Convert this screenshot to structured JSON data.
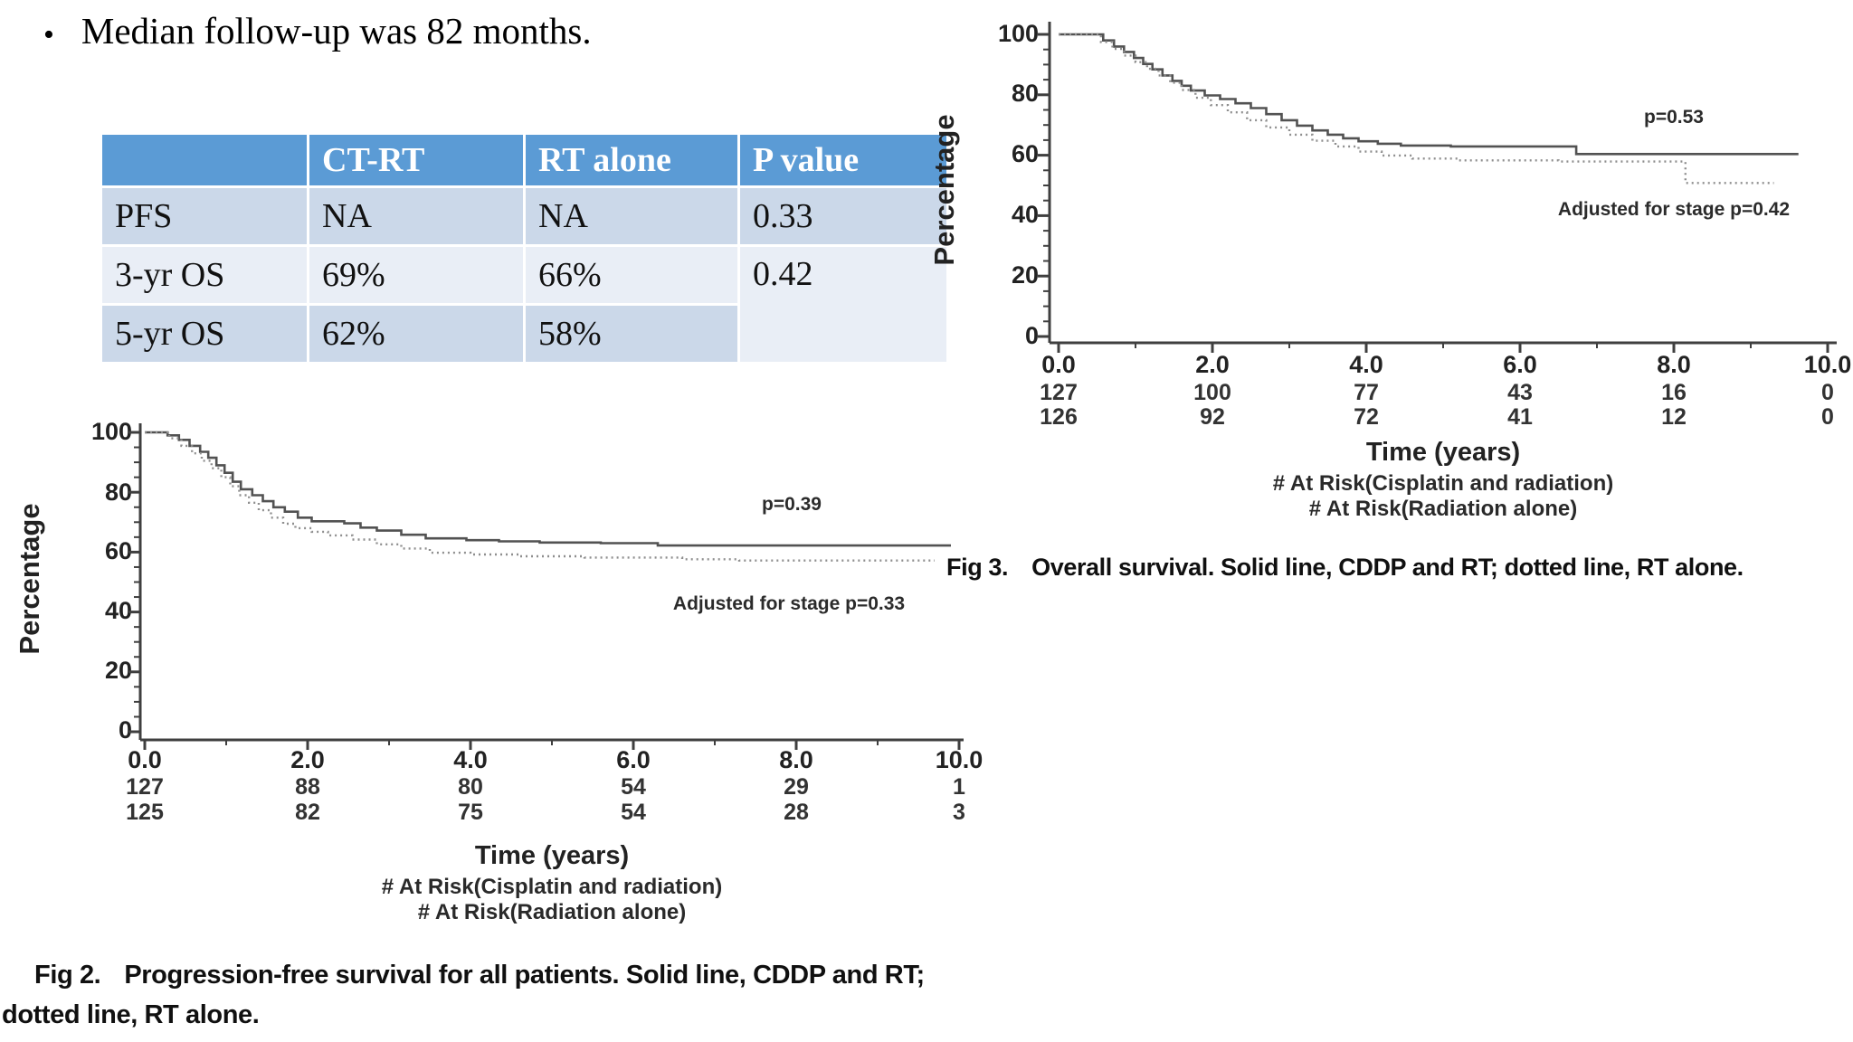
{
  "bullet": {
    "marker": "•",
    "text": "Median follow-up was 82 months."
  },
  "table": {
    "header_bg": "#5B9BD5",
    "band_dark": "#CBD8E9",
    "band_light": "#E9EEF6",
    "header_text_color": "#ffffff",
    "columns": [
      "",
      "CT-RT",
      "RT alone",
      "P value"
    ],
    "rows": [
      {
        "label": "PFS",
        "ct_rt": "NA",
        "rt_alone": "NA",
        "p_value": "0.33"
      },
      {
        "label": "3-yr OS",
        "ct_rt": "69%",
        "rt_alone": "66%",
        "p_value": "0.42"
      },
      {
        "label": "5-yr OS",
        "ct_rt": "62%",
        "rt_alone": "58%",
        "p_value": ""
      }
    ]
  },
  "charts": {
    "fig2": {
      "ylabel": "Percentage",
      "yticks": [
        "100",
        "80",
        "60",
        "40",
        "20",
        "0"
      ],
      "xticks": [
        "0.0",
        "2.0",
        "4.0",
        "6.0",
        "8.0",
        "10.0"
      ],
      "at_risk_rows": [
        [
          "127",
          "88",
          "80",
          "54",
          "29",
          "1"
        ],
        [
          "125",
          "82",
          "75",
          "54",
          "28",
          "3"
        ]
      ],
      "xlabel": "Time (years)",
      "at_risk_caption_1": "# At Risk(Cisplatin and radiation)",
      "at_risk_caption_2": "# At Risk(Radiation alone)",
      "p_annotation": "p=0.39",
      "adjusted_annotation": "Adjusted for stage p=0.33",
      "caption_prefix": "Fig 2.",
      "caption_line1": "Progression-free survival for all patients. Solid line, CDDP and RT;",
      "caption_line2": "dotted line, RT alone."
    },
    "fig3": {
      "ylabel": "Percentage",
      "yticks": [
        "100",
        "80",
        "60",
        "40",
        "20",
        "0"
      ],
      "xticks": [
        "0.0",
        "2.0",
        "4.0",
        "6.0",
        "8.0",
        "10.0"
      ],
      "at_risk_rows": [
        [
          "127",
          "100",
          "77",
          "43",
          "16",
          "0"
        ],
        [
          "126",
          "92",
          "72",
          "41",
          "12",
          "0"
        ]
      ],
      "xlabel": "Time (years)",
      "at_risk_caption_1": "# At Risk(Cisplatin and radiation)",
      "at_risk_caption_2": "# At Risk(Radiation alone)",
      "p_annotation": "p=0.53",
      "adjusted_annotation": "Adjusted for stage p=0.42",
      "caption_prefix": "Fig 3.",
      "caption_text": "Overall survival. Solid line, CDDP and RT; dotted line, RT alone."
    }
  },
  "chart_data": [
    {
      "id": "fig2",
      "type": "line",
      "subtype": "kaplan-meier-step",
      "title": "Progression-free survival for all patients",
      "xlabel": "Time (years)",
      "ylabel": "Percentage",
      "xlim": [
        0,
        10
      ],
      "ylim": [
        0,
        100
      ],
      "xticks": [
        0.0,
        2.0,
        4.0,
        6.0,
        8.0,
        10.0
      ],
      "yticks": [
        0,
        20,
        40,
        60,
        80,
        100
      ],
      "grid": false,
      "p_value": "p=0.39",
      "adjusted_p_value": "Adjusted for stage p=0.33",
      "at_risk": {
        "times": [
          0.0,
          2.0,
          4.0,
          6.0,
          8.0,
          10.0
        ],
        "cisplatin_and_radiation": [
          127,
          88,
          80,
          54,
          29,
          1
        ],
        "radiation_alone": [
          125,
          82,
          75,
          54,
          28,
          3
        ]
      },
      "series": [
        {
          "name": "CDDP and RT",
          "style": "solid",
          "points": [
            [
              0,
              100
            ],
            [
              0.28,
              99
            ],
            [
              0.42,
              97.5
            ],
            [
              0.55,
              95.5
            ],
            [
              0.68,
              93.5
            ],
            [
              0.78,
              91.5
            ],
            [
              0.88,
              89
            ],
            [
              0.98,
              86.5
            ],
            [
              1.08,
              83.5
            ],
            [
              1.18,
              81
            ],
            [
              1.32,
              79
            ],
            [
              1.45,
              77
            ],
            [
              1.58,
              75
            ],
            [
              1.72,
              73.5
            ],
            [
              1.88,
              71.5
            ],
            [
              2.05,
              70.3
            ],
            [
              2.45,
              69.6
            ],
            [
              2.65,
              68.2
            ],
            [
              2.85,
              67.2
            ],
            [
              3.15,
              65.8
            ],
            [
              3.45,
              64.6
            ],
            [
              3.95,
              64
            ],
            [
              4.35,
              63.6
            ],
            [
              4.85,
              63.2
            ],
            [
              5.6,
              63
            ],
            [
              6.25,
              63
            ],
            [
              6.3,
              62.2
            ],
            [
              9.9,
              62.2
            ]
          ]
        },
        {
          "name": "RT alone",
          "style": "dotted",
          "points": [
            [
              0,
              100
            ],
            [
              0.3,
              98
            ],
            [
              0.45,
              95.5
            ],
            [
              0.58,
              93
            ],
            [
              0.7,
              90.5
            ],
            [
              0.82,
              88
            ],
            [
              0.94,
              85
            ],
            [
              1.05,
              82
            ],
            [
              1.16,
              79
            ],
            [
              1.28,
              76.5
            ],
            [
              1.4,
              74
            ],
            [
              1.55,
              71.5
            ],
            [
              1.7,
              69.5
            ],
            [
              1.85,
              68
            ],
            [
              2.05,
              66.8
            ],
            [
              2.25,
              65.6
            ],
            [
              2.55,
              64.2
            ],
            [
              2.85,
              62.6
            ],
            [
              3.15,
              61.2
            ],
            [
              3.5,
              59.8
            ],
            [
              4.0,
              59.2
            ],
            [
              4.6,
              58.6
            ],
            [
              5.4,
              58.2
            ],
            [
              6.6,
              57.6
            ],
            [
              7.3,
              57.2
            ],
            [
              9.7,
              57.2
            ]
          ]
        }
      ]
    },
    {
      "id": "fig3",
      "type": "line",
      "subtype": "kaplan-meier-step",
      "title": "Overall survival",
      "xlabel": "Time (years)",
      "ylabel": "Percentage",
      "xlim": [
        0,
        10
      ],
      "ylim": [
        0,
        100
      ],
      "xticks": [
        0.0,
        2.0,
        4.0,
        6.0,
        8.0,
        10.0
      ],
      "yticks": [
        0,
        20,
        40,
        60,
        80,
        100
      ],
      "grid": false,
      "p_value": "p=0.53",
      "adjusted_p_value": "Adjusted for stage p=0.42",
      "at_risk": {
        "times": [
          0.0,
          2.0,
          4.0,
          6.0,
          8.0,
          10.0
        ],
        "cisplatin_and_radiation": [
          127,
          100,
          77,
          43,
          16,
          0
        ],
        "radiation_alone": [
          126,
          92,
          72,
          41,
          12,
          0
        ]
      },
      "series": [
        {
          "name": "CDDP and RT",
          "style": "solid",
          "points": [
            [
              0,
              100
            ],
            [
              0.45,
              100
            ],
            [
              0.58,
              98
            ],
            [
              0.72,
              96
            ],
            [
              0.85,
              94.2
            ],
            [
              0.98,
              92.2
            ],
            [
              1.1,
              90.2
            ],
            [
              1.22,
              88.4
            ],
            [
              1.35,
              86.4
            ],
            [
              1.48,
              84.6
            ],
            [
              1.6,
              83
            ],
            [
              1.72,
              81.4
            ],
            [
              1.9,
              79.8
            ],
            [
              2.1,
              78.6
            ],
            [
              2.3,
              77.2
            ],
            [
              2.5,
              75.6
            ],
            [
              2.7,
              73.6
            ],
            [
              2.9,
              71.6
            ],
            [
              3.1,
              69.8
            ],
            [
              3.3,
              68.2
            ],
            [
              3.5,
              66.8
            ],
            [
              3.7,
              65.6
            ],
            [
              3.9,
              64.6
            ],
            [
              4.15,
              63.8
            ],
            [
              4.45,
              63.2
            ],
            [
              5.1,
              62.9
            ],
            [
              6.68,
              62.9
            ],
            [
              6.73,
              60.4
            ],
            [
              9.62,
              60.4
            ]
          ]
        },
        {
          "name": "RT alone",
          "style": "dotted",
          "points": [
            [
              0,
              100
            ],
            [
              0.4,
              100
            ],
            [
              0.55,
              97.5
            ],
            [
              0.7,
              95.2
            ],
            [
              0.85,
              93
            ],
            [
              1.0,
              90.8
            ],
            [
              1.15,
              88.6
            ],
            [
              1.3,
              86.4
            ],
            [
              1.45,
              84
            ],
            [
              1.6,
              81.6
            ],
            [
              1.78,
              79
            ],
            [
              1.98,
              76.6
            ],
            [
              2.2,
              74.2
            ],
            [
              2.45,
              71.6
            ],
            [
              2.7,
              69.2
            ],
            [
              3.0,
              66.8
            ],
            [
              3.3,
              64.8
            ],
            [
              3.6,
              62.9
            ],
            [
              3.9,
              61.2
            ],
            [
              4.2,
              59.9
            ],
            [
              4.6,
              58.9
            ],
            [
              5.2,
              58.3
            ],
            [
              6.5,
              57.9
            ],
            [
              8.1,
              57.9
            ],
            [
              8.15,
              50.8
            ],
            [
              9.3,
              50.8
            ]
          ]
        }
      ]
    }
  ]
}
